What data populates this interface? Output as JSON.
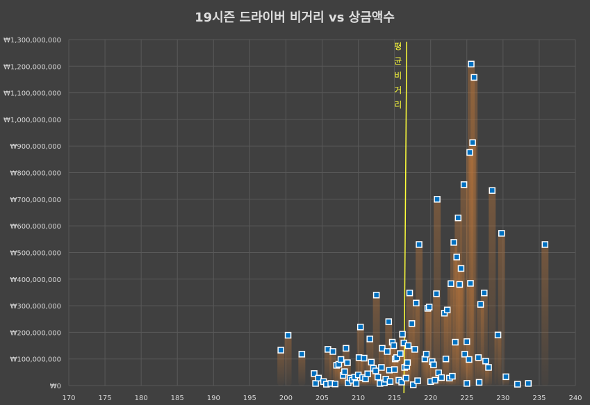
{
  "chart_data": {
    "type": "scatter",
    "title": "19시즌 드라이버 비거리 vs 상금액수",
    "xlabel": "",
    "ylabel": "",
    "xlim": [
      170,
      240
    ],
    "ylim": [
      0,
      1300000000
    ],
    "x_ticks": [
      "170",
      "175",
      "180",
      "185",
      "190",
      "195",
      "200",
      "205",
      "210",
      "215",
      "220",
      "225",
      "230",
      "235",
      "240"
    ],
    "y_ticks": [
      "₩0",
      "₩100,000,000",
      "₩200,000,000",
      "₩300,000,000",
      "₩400,000,000",
      "₩500,000,000",
      "₩600,000,000",
      "₩700,000,000",
      "₩800,000,000",
      "₩900,000,000",
      "₩1,000,000,000",
      "₩1,100,000,000",
      "₩1,200,000,000",
      "₩1,300,000,000"
    ],
    "grid": true,
    "average_line": {
      "x": 216.5,
      "label_chars": [
        "평",
        "균",
        "비",
        "거",
        "리"
      ],
      "color": "#ffff3a"
    },
    "marker_color": "#0070c0",
    "points": [
      [
        199.3,
        133000000
      ],
      [
        200.3,
        189000000
      ],
      [
        202.2,
        118000000
      ],
      [
        203.9,
        45000000
      ],
      [
        204.1,
        8000000
      ],
      [
        204.5,
        28000000
      ],
      [
        205.2,
        15000000
      ],
      [
        205.6,
        5000000
      ],
      [
        205.8,
        136000000
      ],
      [
        206.2,
        8000000
      ],
      [
        206.5,
        128000000
      ],
      [
        206.8,
        6000000
      ],
      [
        207,
        76000000
      ],
      [
        207.3,
        80000000
      ],
      [
        207.6,
        98000000
      ],
      [
        207.9,
        38000000
      ],
      [
        208.1,
        52000000
      ],
      [
        208.3,
        140000000
      ],
      [
        208.5,
        86000000
      ],
      [
        208.6,
        10000000
      ],
      [
        208.9,
        28000000
      ],
      [
        209.2,
        20000000
      ],
      [
        209.5,
        32000000
      ],
      [
        209.7,
        8000000
      ],
      [
        210,
        40000000
      ],
      [
        210.1,
        105000000
      ],
      [
        210.3,
        220000000
      ],
      [
        210.6,
        30000000
      ],
      [
        210.8,
        103000000
      ],
      [
        211,
        25000000
      ],
      [
        211.3,
        44000000
      ],
      [
        211.6,
        175000000
      ],
      [
        211.8,
        88000000
      ],
      [
        212.1,
        65000000
      ],
      [
        212.4,
        55000000
      ],
      [
        212.5,
        340000000
      ],
      [
        212.7,
        32000000
      ],
      [
        213,
        8000000
      ],
      [
        213.2,
        68000000
      ],
      [
        213.3,
        140000000
      ],
      [
        213.6,
        10000000
      ],
      [
        213.8,
        24000000
      ],
      [
        214,
        128000000
      ],
      [
        214.2,
        240000000
      ],
      [
        214.3,
        58000000
      ],
      [
        214.4,
        15000000
      ],
      [
        214.7,
        163000000
      ],
      [
        214.9,
        150000000
      ],
      [
        215,
        60000000
      ],
      [
        215.1,
        100000000
      ],
      [
        215.3,
        105000000
      ],
      [
        215.6,
        20000000
      ],
      [
        215.8,
        120000000
      ],
      [
        216,
        13000000
      ],
      [
        216.1,
        193000000
      ],
      [
        216.3,
        160000000
      ],
      [
        216.4,
        68000000
      ],
      [
        216.6,
        28000000
      ],
      [
        216.7,
        72000000
      ],
      [
        216.8,
        86000000
      ],
      [
        216.9,
        150000000
      ],
      [
        217.1,
        348000000
      ],
      [
        217.4,
        233000000
      ],
      [
        217.6,
        3000000
      ],
      [
        217.8,
        136000000
      ],
      [
        218,
        310000000
      ],
      [
        218.2,
        18000000
      ],
      [
        218.4,
        530000000
      ],
      [
        219.2,
        100000000
      ],
      [
        219.4,
        118000000
      ],
      [
        219.6,
        290000000
      ],
      [
        219.8,
        295000000
      ],
      [
        220,
        15000000
      ],
      [
        220.2,
        90000000
      ],
      [
        220.4,
        78000000
      ],
      [
        220.6,
        20000000
      ],
      [
        220.8,
        345000000
      ],
      [
        220.9,
        700000000
      ],
      [
        221.1,
        48000000
      ],
      [
        221.5,
        30000000
      ],
      [
        221.9,
        272000000
      ],
      [
        222.1,
        100000000
      ],
      [
        222.3,
        284000000
      ],
      [
        222.6,
        28000000
      ],
      [
        222.8,
        383000000
      ],
      [
        223,
        35000000
      ],
      [
        223.2,
        538000000
      ],
      [
        223.4,
        163000000
      ],
      [
        223.6,
        483000000
      ],
      [
        223.8,
        630000000
      ],
      [
        224,
        380000000
      ],
      [
        224.2,
        440000000
      ],
      [
        224.6,
        755000000
      ],
      [
        224.7,
        118000000
      ],
      [
        225,
        8000000
      ],
      [
        225,
        165000000
      ],
      [
        225.3,
        98000000
      ],
      [
        225.4,
        876000000
      ],
      [
        225.5,
        384000000
      ],
      [
        225.6,
        1208000000
      ],
      [
        225.8,
        913000000
      ],
      [
        226,
        1158000000
      ],
      [
        226.6,
        105000000
      ],
      [
        226.7,
        12000000
      ],
      [
        226.9,
        305000000
      ],
      [
        227.4,
        348000000
      ],
      [
        227.6,
        92000000
      ],
      [
        228,
        68000000
      ],
      [
        228.5,
        733000000
      ],
      [
        229.3,
        190000000
      ],
      [
        229.8,
        572000000
      ],
      [
        230.4,
        33000000
      ],
      [
        232,
        5000000
      ],
      [
        233.5,
        8000000
      ],
      [
        235.8,
        530000000
      ]
    ]
  }
}
